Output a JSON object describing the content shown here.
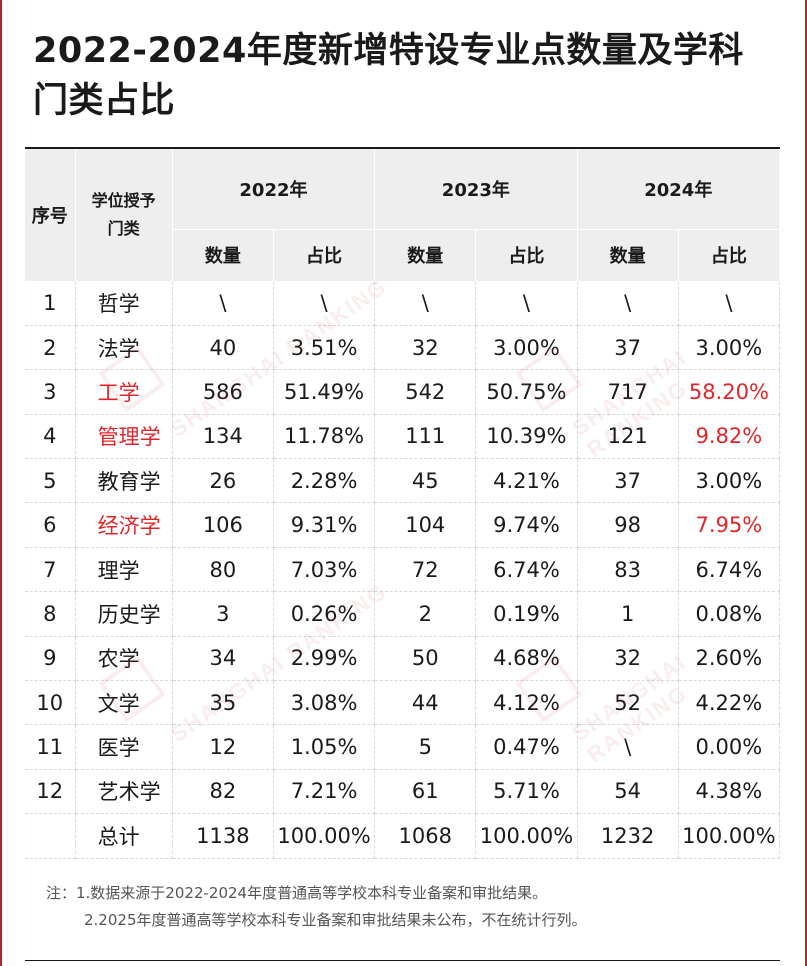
{
  "title": "2022-2024年度新增特设专业点数量及学科门类占比",
  "watermark": "SHANGHAI RANKING",
  "colors": {
    "accent": "#e0262b",
    "frame": "#b3232c"
  },
  "table": {
    "header": {
      "index": "序号",
      "category": "学位授予门类",
      "years": [
        "2022年",
        "2023年",
        "2024年"
      ],
      "count": "数量",
      "share": "占比"
    },
    "rows": [
      {
        "idx": "1",
        "name": "哲学",
        "c22": "\\",
        "p22": "\\",
        "c23": "\\",
        "p23": "\\",
        "c24": "\\",
        "p24": "\\",
        "highlight_name": false,
        "highlight_p24": false
      },
      {
        "idx": "2",
        "name": "法学",
        "c22": "40",
        "p22": "3.51%",
        "c23": "32",
        "p23": "3.00%",
        "c24": "37",
        "p24": "3.00%",
        "highlight_name": false,
        "highlight_p24": false
      },
      {
        "idx": "3",
        "name": "工学",
        "c22": "586",
        "p22": "51.49%",
        "c23": "542",
        "p23": "50.75%",
        "c24": "717",
        "p24": "58.20%",
        "highlight_name": true,
        "highlight_p24": true
      },
      {
        "idx": "4",
        "name": "管理学",
        "c22": "134",
        "p22": "11.78%",
        "c23": "111",
        "p23": "10.39%",
        "c24": "121",
        "p24": "9.82%",
        "highlight_name": true,
        "highlight_p24": true
      },
      {
        "idx": "5",
        "name": "教育学",
        "c22": "26",
        "p22": "2.28%",
        "c23": "45",
        "p23": "4.21%",
        "c24": "37",
        "p24": "3.00%",
        "highlight_name": false,
        "highlight_p24": false
      },
      {
        "idx": "6",
        "name": "经济学",
        "c22": "106",
        "p22": "9.31%",
        "c23": "104",
        "p23": "9.74%",
        "c24": "98",
        "p24": "7.95%",
        "highlight_name": true,
        "highlight_p24": true
      },
      {
        "idx": "7",
        "name": "理学",
        "c22": "80",
        "p22": "7.03%",
        "c23": "72",
        "p23": "6.74%",
        "c24": "83",
        "p24": "6.74%",
        "highlight_name": false,
        "highlight_p24": false
      },
      {
        "idx": "8",
        "name": "历史学",
        "c22": "3",
        "p22": "0.26%",
        "c23": "2",
        "p23": "0.19%",
        "c24": "1",
        "p24": "0.08%",
        "highlight_name": false,
        "highlight_p24": false
      },
      {
        "idx": "9",
        "name": "农学",
        "c22": "34",
        "p22": "2.99%",
        "c23": "50",
        "p23": "4.68%",
        "c24": "32",
        "p24": "2.60%",
        "highlight_name": false,
        "highlight_p24": false
      },
      {
        "idx": "10",
        "name": "文学",
        "c22": "35",
        "p22": "3.08%",
        "c23": "44",
        "p23": "4.12%",
        "c24": "52",
        "p24": "4.22%",
        "highlight_name": false,
        "highlight_p24": false
      },
      {
        "idx": "11",
        "name": "医学",
        "c22": "12",
        "p22": "1.05%",
        "c23": "5",
        "p23": "0.47%",
        "c24": "\\",
        "p24": "0.00%",
        "highlight_name": false,
        "highlight_p24": false
      },
      {
        "idx": "12",
        "name": "艺术学",
        "c22": "82",
        "p22": "7.21%",
        "c23": "61",
        "p23": "5.71%",
        "c24": "54",
        "p24": "4.38%",
        "highlight_name": false,
        "highlight_p24": false
      },
      {
        "idx": "",
        "name": "总计",
        "c22": "1138",
        "p22": "100.00%",
        "c23": "1068",
        "p23": "100.00%",
        "c24": "1232",
        "p24": "100.00%",
        "highlight_name": false,
        "highlight_p24": false
      }
    ]
  },
  "notes": {
    "n1": "注：1.数据来源于2022-2024年度普通高等学校本科专业备案和审批结果。",
    "n2": "2.2025年度普通高等学校本科专业备案和审批结果未公布，不在统计行列。"
  }
}
